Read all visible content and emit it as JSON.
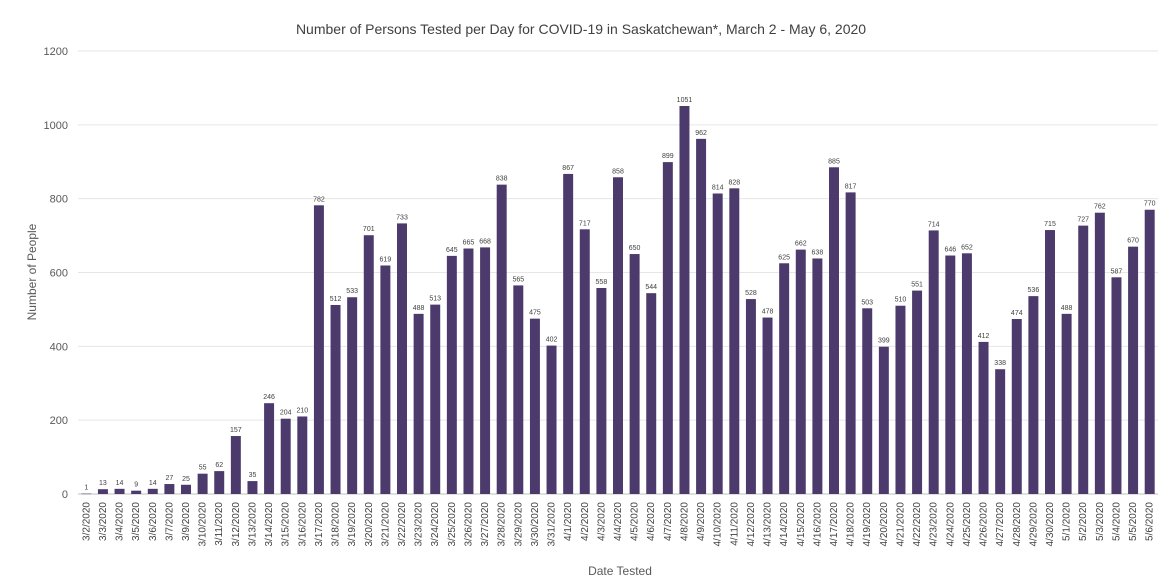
{
  "chart_data": {
    "type": "bar",
    "title": "Number of Persons Tested per Day for COVID-19 in Saskatchewan*, March 2 - May 6, 2020",
    "xlabel": "Date Tested",
    "ylabel": "Number of People",
    "ylim": [
      0,
      1200
    ],
    "yticks": [
      "0",
      "200",
      "400",
      "600",
      "800",
      "1000",
      "1200"
    ],
    "grid": true,
    "bar_color": "#4b3a6b",
    "categories": [
      "3/2/2020",
      "3/3/2020",
      "3/4/2020",
      "3/5/2020",
      "3/6/2020",
      "3/7/2020",
      "3/9/2020",
      "3/10/2020",
      "3/11/2020",
      "3/12/2020",
      "3/13/2020",
      "3/14/2020",
      "3/15/2020",
      "3/16/2020",
      "3/17/2020",
      "3/18/2020",
      "3/19/2020",
      "3/20/2020",
      "3/21/2020",
      "3/22/2020",
      "3/23/2020",
      "3/24/2020",
      "3/25/2020",
      "3/26/2020",
      "3/27/2020",
      "3/28/2020",
      "3/29/2020",
      "3/30/2020",
      "3/31/2020",
      "4/1/2020",
      "4/2/2020",
      "4/3/2020",
      "4/4/2020",
      "4/5/2020",
      "4/6/2020",
      "4/7/2020",
      "4/8/2020",
      "4/9/2020",
      "4/10/2020",
      "4/11/2020",
      "4/12/2020",
      "4/13/2020",
      "4/14/2020",
      "4/15/2020",
      "4/16/2020",
      "4/17/2020",
      "4/18/2020",
      "4/19/2020",
      "4/20/2020",
      "4/21/2020",
      "4/22/2020",
      "4/23/2020",
      "4/24/2020",
      "4/25/2020",
      "4/26/2020",
      "4/27/2020",
      "4/28/2020",
      "4/29/2020",
      "4/30/2020",
      "5/1/2020",
      "5/2/2020",
      "5/3/2020",
      "5/4/2020",
      "5/5/2020",
      "5/6/2020"
    ],
    "values": [
      1,
      13,
      14,
      9,
      14,
      27,
      25,
      55,
      62,
      157,
      35,
      246,
      204,
      210,
      782,
      512,
      533,
      701,
      619,
      733,
      488,
      513,
      645,
      665,
      668,
      838,
      565,
      475,
      402,
      867,
      717,
      558,
      858,
      650,
      544,
      899,
      1051,
      962,
      814,
      828,
      528,
      478,
      625,
      662,
      638,
      885,
      817,
      503,
      399,
      510,
      551,
      714,
      646,
      652,
      412,
      338,
      474,
      536,
      715,
      488,
      727,
      762,
      587,
      670,
      770
    ]
  }
}
